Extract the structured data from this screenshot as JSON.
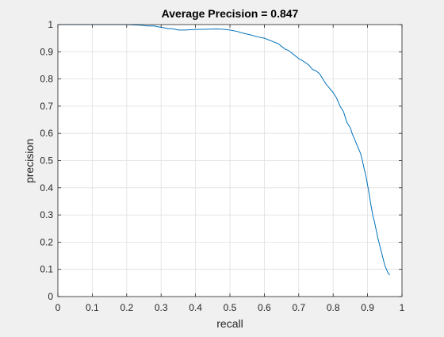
{
  "chart_data": {
    "type": "line",
    "title": "Average Precision = 0.847",
    "xlabel": "recall",
    "ylabel": "precision",
    "xlim": [
      0,
      1
    ],
    "ylim": [
      0,
      1
    ],
    "xticks": [
      0,
      0.1,
      0.2,
      0.3,
      0.4,
      0.5,
      0.6,
      0.7,
      0.8,
      0.9,
      1
    ],
    "yticks": [
      0,
      0.1,
      0.2,
      0.3,
      0.4,
      0.5,
      0.6,
      0.7,
      0.8,
      0.9,
      1
    ],
    "xtick_labels": [
      "0",
      "0.1",
      "0.2",
      "0.3",
      "0.4",
      "0.5",
      "0.6",
      "0.7",
      "0.8",
      "0.9",
      "1"
    ],
    "ytick_labels": [
      "0",
      "0.1",
      "0.2",
      "0.3",
      "0.4",
      "0.5",
      "0.6",
      "0.7",
      "0.8",
      "0.9",
      "1"
    ],
    "grid": true,
    "line_color": "#0072bd",
    "series": [
      {
        "x": [
          0.0,
          0.01,
          0.05,
          0.1,
          0.15,
          0.2,
          0.24,
          0.26,
          0.28,
          0.29,
          0.3,
          0.31,
          0.32,
          0.33,
          0.34,
          0.35,
          0.37,
          0.4,
          0.43,
          0.46,
          0.48,
          0.5,
          0.52,
          0.54,
          0.56,
          0.58,
          0.6,
          0.61,
          0.62,
          0.63,
          0.64,
          0.65,
          0.66,
          0.67,
          0.68,
          0.69,
          0.7,
          0.71,
          0.72,
          0.73,
          0.74,
          0.75,
          0.76,
          0.77,
          0.78,
          0.79,
          0.8,
          0.81,
          0.815,
          0.82,
          0.83,
          0.835,
          0.84,
          0.845,
          0.85,
          0.855,
          0.86,
          0.865,
          0.87,
          0.875,
          0.88,
          0.885,
          0.89,
          0.895,
          0.9,
          0.905,
          0.91,
          0.915,
          0.92,
          0.925,
          0.93,
          0.935,
          0.94,
          0.945,
          0.95,
          0.955,
          0.96,
          0.965
        ],
        "y": [
          1.0,
          1.0,
          1.0,
          1.0,
          1.0,
          1.0,
          0.998,
          0.995,
          0.995,
          0.992,
          0.99,
          0.988,
          0.985,
          0.985,
          0.983,
          0.98,
          0.98,
          0.982,
          0.983,
          0.984,
          0.983,
          0.98,
          0.975,
          0.968,
          0.962,
          0.955,
          0.95,
          0.945,
          0.94,
          0.935,
          0.93,
          0.92,
          0.91,
          0.905,
          0.895,
          0.885,
          0.875,
          0.868,
          0.86,
          0.85,
          0.835,
          0.83,
          0.82,
          0.8,
          0.78,
          0.765,
          0.75,
          0.73,
          0.715,
          0.7,
          0.68,
          0.66,
          0.64,
          0.63,
          0.62,
          0.6,
          0.585,
          0.57,
          0.555,
          0.54,
          0.525,
          0.5,
          0.47,
          0.445,
          0.41,
          0.375,
          0.335,
          0.3,
          0.275,
          0.245,
          0.215,
          0.19,
          0.165,
          0.14,
          0.115,
          0.1,
          0.085,
          0.08
        ]
      }
    ]
  }
}
